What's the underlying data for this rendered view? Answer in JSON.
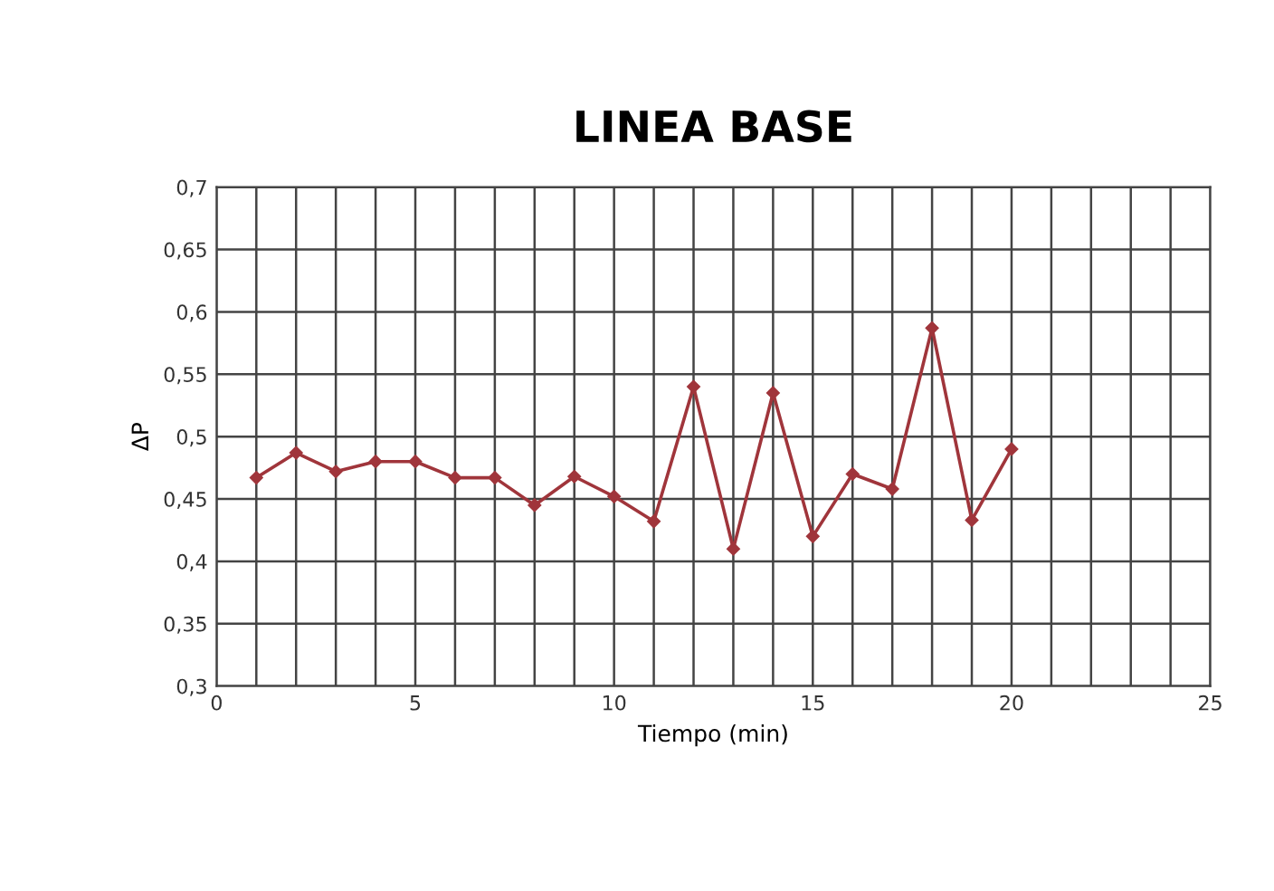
{
  "chart_data": {
    "type": "line",
    "title": "LINEA BASE",
    "xlabel": "Tiempo (min)",
    "ylabel": "ΔP",
    "x": [
      1,
      2,
      3,
      4,
      5,
      6,
      7,
      8,
      9,
      10,
      11,
      12,
      13,
      14,
      15,
      16,
      17,
      18,
      19,
      20
    ],
    "series": [
      {
        "color": "#a0353b",
        "values": [
          0.467,
          0.487,
          0.472,
          0.48,
          0.48,
          0.467,
          0.467,
          0.445,
          0.468,
          0.452,
          0.432,
          0.54,
          0.41,
          0.535,
          0.42,
          0.47,
          0.458,
          0.587,
          0.433,
          0.49
        ]
      }
    ],
    "xlim": [
      0,
      25
    ],
    "xticks": [
      0,
      {
        "value": 1,
        "label": null
      },
      {
        "value": 2,
        "label": null
      },
      {
        "value": 3,
        "label": null
      },
      {
        "value": 4,
        "label": null
      },
      5,
      {
        "value": 6,
        "label": null
      },
      {
        "value": 7,
        "label": null
      },
      {
        "value": 8,
        "label": null
      },
      {
        "value": 9,
        "label": null
      },
      10,
      {
        "value": 11,
        "label": null
      },
      {
        "value": 12,
        "label": null
      },
      {
        "value": 13,
        "label": null
      },
      {
        "value": 14,
        "label": null
      },
      15,
      {
        "value": 16,
        "label": null
      },
      {
        "value": 17,
        "label": null
      },
      {
        "value": 18,
        "label": null
      },
      {
        "value": 19,
        "label": null
      },
      20,
      {
        "value": 21,
        "label": null
      },
      {
        "value": 22,
        "label": null
      },
      {
        "value": 23,
        "label": null
      },
      {
        "value": 24,
        "label": null
      },
      25
    ],
    "ylim": [
      0.3,
      0.7
    ],
    "yticks": [
      {
        "value": 0.3,
        "label": "0,3"
      },
      {
        "value": 0.35,
        "label": "0,35"
      },
      {
        "value": 0.4,
        "label": "0,4"
      },
      {
        "value": 0.45,
        "label": "0,45"
      },
      {
        "value": 0.5,
        "label": "0,5"
      },
      {
        "value": 0.55,
        "label": "0,55"
      },
      {
        "value": 0.6,
        "label": "0,6"
      },
      {
        "value": 0.65,
        "label": "0,65"
      },
      {
        "value": 0.7,
        "label": "0,7"
      }
    ],
    "grid": true,
    "marker": "diamond",
    "line_style": "solid",
    "legend": false
  }
}
